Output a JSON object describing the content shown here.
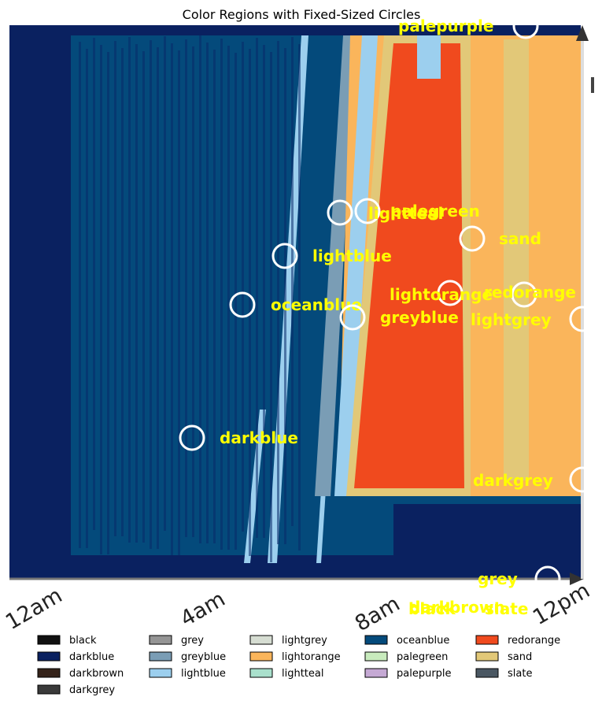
{
  "chart_data": {
    "type": "heatmap",
    "title": "Color Regions with Fixed-Sized Circles",
    "x_ticks": [
      "12am",
      "4am",
      "8am",
      "12pm"
    ],
    "label_color": "#ffff00",
    "circle_color": "#ffffff",
    "regions": [
      {
        "label": "palepurple"
      },
      {
        "label": "palegreen"
      },
      {
        "label": "lightteal"
      },
      {
        "label": "sand"
      },
      {
        "label": "lightblue"
      },
      {
        "label": "lightorange"
      },
      {
        "label": "redorange"
      },
      {
        "label": "oceanblue"
      },
      {
        "label": "greyblue"
      },
      {
        "label": "lightgrey"
      },
      {
        "label": "darkblue"
      },
      {
        "label": "darkgrey"
      },
      {
        "label": "grey"
      },
      {
        "label": "darkbrown"
      },
      {
        "label": "black"
      },
      {
        "label": "slate"
      }
    ],
    "legend": [
      {
        "name": "black",
        "color": "#111111"
      },
      {
        "name": "darkblue",
        "color": "#0a2160"
      },
      {
        "name": "darkbrown",
        "color": "#35231a"
      },
      {
        "name": "darkgrey",
        "color": "#3a3a3a"
      },
      {
        "name": "grey",
        "color": "#959595"
      },
      {
        "name": "greyblue",
        "color": "#7a9db5"
      },
      {
        "name": "lightblue",
        "color": "#9ccfee"
      },
      {
        "name": "lightgrey",
        "color": "#d6ddd2"
      },
      {
        "name": "lightorange",
        "color": "#fab55b"
      },
      {
        "name": "lightteal",
        "color": "#a9e0cc"
      },
      {
        "name": "oceanblue",
        "color": "#044a7b"
      },
      {
        "name": "palegreen",
        "color": "#c8ebbd"
      },
      {
        "name": "palepurple",
        "color": "#c5a9d4"
      },
      {
        "name": "redorange",
        "color": "#f04a1e"
      },
      {
        "name": "sand",
        "color": "#e2c878"
      },
      {
        "name": "slate",
        "color": "#4a5762"
      }
    ]
  }
}
